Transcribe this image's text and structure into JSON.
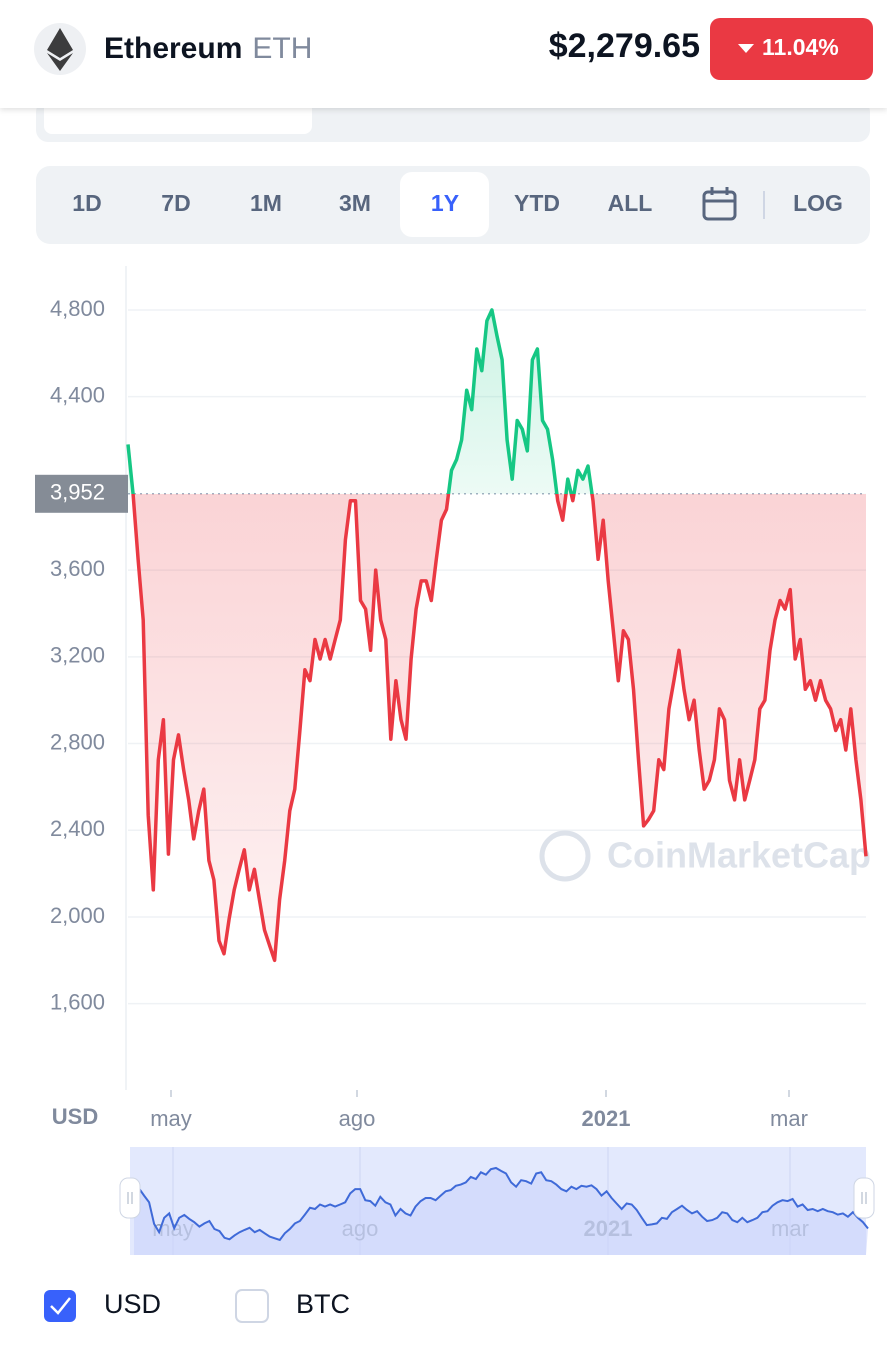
{
  "header": {
    "name": "Ethereum",
    "symbol": "ETH",
    "price": "$2,279.65",
    "change": "11.04%"
  },
  "tabs": [
    "1D",
    "7D",
    "1M",
    "3M",
    "1Y",
    "YTD",
    "ALL"
  ],
  "log_button": "LOG",
  "chart_data": {
    "type": "line",
    "color_up": "#16c784",
    "color_down": "#ea3943",
    "baseline": {
      "value": 3952,
      "label": "3,952"
    },
    "ylim": [
      1200,
      5000
    ],
    "yticks": [
      {
        "value": 1600,
        "label": "1,600"
      },
      {
        "value": 2000,
        "label": "2,000"
      },
      {
        "value": 2400,
        "label": "2,400"
      },
      {
        "value": 2800,
        "label": "2,800"
      },
      {
        "value": 3200,
        "label": "3,200"
      },
      {
        "value": 3600,
        "label": "3,600"
      },
      {
        "value": 4400,
        "label": "4,400"
      },
      {
        "value": 4800,
        "label": "4,800"
      }
    ],
    "grid": true,
    "x_labels": [
      "may",
      "ago",
      "2021",
      "mar"
    ],
    "axis_unit": "USD",
    "watermark": "CoinMarketCap",
    "values": [
      4180,
      3950,
      3650,
      3370,
      2470,
      2125,
      2725,
      2910,
      2290,
      2725,
      2840,
      2680,
      2540,
      2360,
      2490,
      2590,
      2260,
      2170,
      1890,
      1830,
      1990,
      2125,
      2220,
      2310,
      2125,
      2220,
      2080,
      1940,
      1870,
      1800,
      2080,
      2260,
      2490,
      2590,
      2860,
      3140,
      3090,
      3280,
      3190,
      3280,
      3190,
      3280,
      3370,
      3740,
      3920,
      3920,
      3460,
      3420,
      3230,
      3600,
      3370,
      3280,
      2820,
      3090,
      2910,
      2820,
      3190,
      3420,
      3550,
      3550,
      3460,
      3650,
      3830,
      3880,
      4060,
      4110,
      4200,
      4430,
      4340,
      4620,
      4520,
      4750,
      4800,
      4680,
      4570,
      4200,
      4020,
      4290,
      4250,
      4150,
      4570,
      4620,
      4290,
      4250,
      4110,
      3920,
      3830,
      4020,
      3920,
      4060,
      4020,
      4080,
      3920,
      3650,
      3830,
      3550,
      3320,
      3090,
      3320,
      3280,
      3050,
      2725,
      2420,
      2450,
      2490,
      2725,
      2680,
      2960,
      3090,
      3230,
      3050,
      2910,
      3000,
      2770,
      2590,
      2630,
      2725,
      2960,
      2910,
      2630,
      2540,
      2725,
      2540,
      2630,
      2725,
      2960,
      3000,
      3230,
      3370,
      3460,
      3420,
      3510,
      3190,
      3280,
      3050,
      3090,
      3000,
      3090,
      3000,
      2960,
      2860,
      2910,
      2770,
      2960,
      2725,
      2540,
      2280
    ]
  },
  "currency_options": [
    {
      "label": "USD",
      "checked": true
    },
    {
      "label": "BTC",
      "checked": false
    }
  ]
}
